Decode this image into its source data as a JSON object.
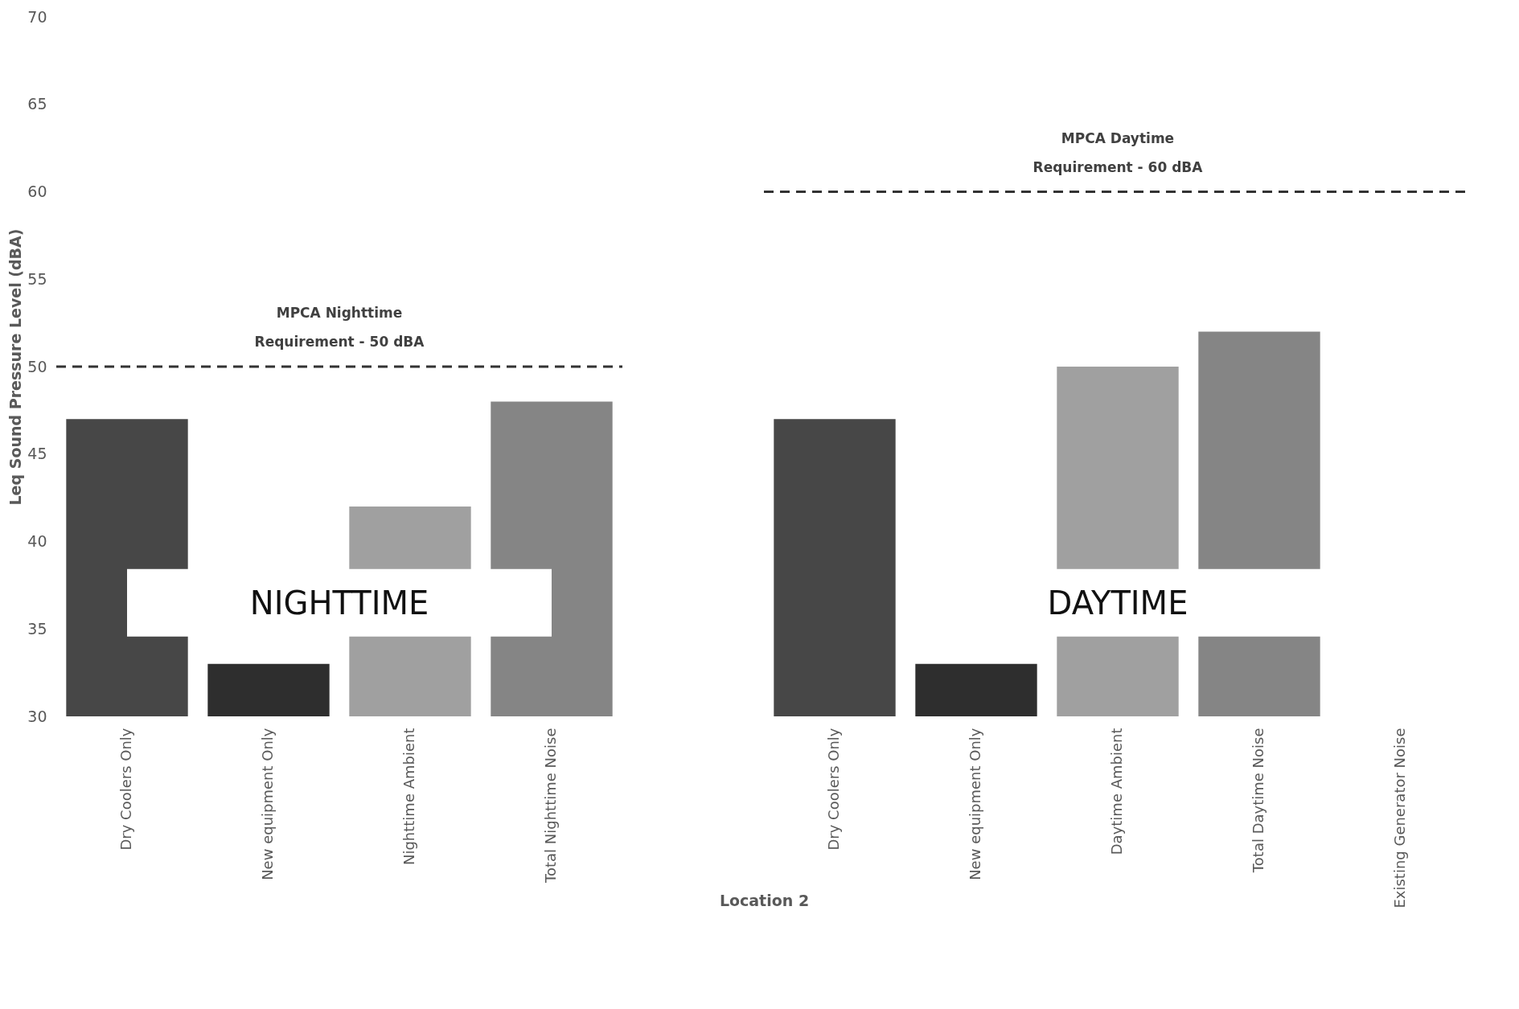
{
  "chart_data": {
    "type": "bar",
    "xlabel": "Location 2",
    "ylabel": "Leq Sound Pressure Level (dBA)",
    "categories": [
      "Dry Coolers Only",
      "New equipment Only",
      "Nighttime Ambient",
      "Total Nighttime Noise",
      null,
      "Dry Coolers Only",
      "New equipment Only",
      "Daytime Ambient",
      "Total Daytime Noise",
      "Existing Generator Noise"
    ],
    "values": [
      47,
      33,
      42,
      48,
      null,
      47,
      33,
      50,
      52,
      null
    ],
    "colors": [
      "#474747",
      "#2e2e2e",
      "#a0a0a0",
      "#858585",
      "#858585",
      "#474747",
      "#2e2e2e",
      "#a0a0a0",
      "#858585",
      "#858585"
    ],
    "ylim": [
      30,
      70
    ],
    "yticks": [
      30,
      35,
      40,
      45,
      50,
      55,
      60,
      65,
      70
    ],
    "grid": false,
    "ref_lines": [
      {
        "axis": "y",
        "value": 50,
        "label": "MPCA Nighttime Requirement - 50 dBA",
        "color": "#333333",
        "line_style": "dashed"
      },
      {
        "axis": "y",
        "value": 60,
        "label": "MPCA Daytime Requirement - 60 dBA",
        "color": "#333333",
        "line_style": "dashed"
      }
    ],
    "annotations": [
      "NIGHTTIME",
      "DAYTIME"
    ]
  }
}
